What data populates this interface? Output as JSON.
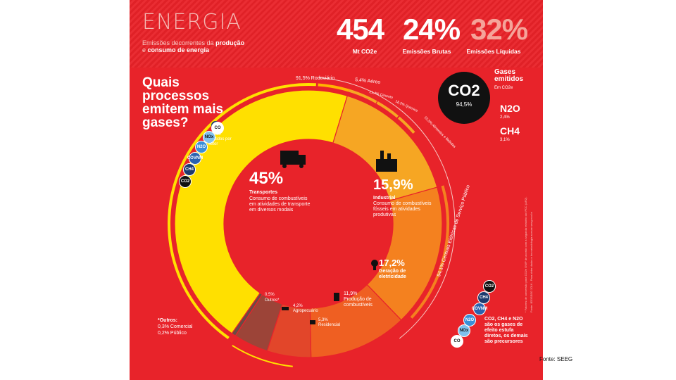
{
  "header": {
    "title": "ENERGIA",
    "subtitle_line1_prefix": "Emissões decorrentes da ",
    "subtitle_line1_highlight": "produção",
    "subtitle_line2_prefix": "e ",
    "subtitle_line2_highlight": "consumo de energia",
    "stats": [
      {
        "value": "454",
        "label": "Mt CO2e"
      },
      {
        "value": "24%",
        "label": "Emissões Brutas"
      },
      {
        "value": "32%",
        "label": "Emissões Líquidas"
      }
    ]
  },
  "question": "Quais processos emitem mais gases?",
  "legend_gases_by_sector": "Gases emitidos por setor",
  "gases_panel": {
    "title": "Gases emitidos",
    "unit": "Em CO2e",
    "co2": {
      "label": "CO2",
      "value": "94,5%"
    },
    "n2o": {
      "label": "N2O",
      "value": "2,4%"
    },
    "ch4": {
      "label": "CH4",
      "value": "3,1%"
    }
  },
  "gas_bubbles_left": [
    "CO",
    "NOx",
    "N2O",
    "COVNM",
    "CH4",
    "CO2"
  ],
  "gas_bubbles_right": [
    "CO2",
    "CH4",
    "COVNM",
    "N2O",
    "NOx",
    "CO"
  ],
  "right_note": "CO2, CH4 e N2O são os gases de efeito estufa diretos, os demais são precursores",
  "outros_note": {
    "title": "*Outros:",
    "line1": "0,3% Comercial",
    "line2": "0,2% Público"
  },
  "source_note_line1": "* Fatores de conversão para CO2e GWP de acordo com a segunda relatório do IPCC (AR2).",
  "source_note_line2": "Fonte: IEE/SEEG 2016 - Para obter dados e ler metodologia acesse seeg.eco.br",
  "fonte": "Fonte: SEEG",
  "chart_data": {
    "type": "pie",
    "style": "donut",
    "title": "",
    "sectors": [
      {
        "name": "Transportes",
        "value": 45.0,
        "label": "45%",
        "desc": "Consumo de combustíveis em atividades de transporte em diversos modais",
        "color": "#ffe000"
      },
      {
        "name": "Industrial",
        "value": 15.9,
        "label": "15,9%",
        "desc": "Consumo de combustíveis fósseis em atividades produtivas",
        "color": "#f6a623"
      },
      {
        "name": "Geração de eletricidade",
        "value": 17.2,
        "label": "17,2%",
        "desc": "",
        "color": "#f4811f"
      },
      {
        "name": "Produção de combustíveis",
        "value": 11.9,
        "label": "11,9%",
        "desc": "",
        "color": "#ef5f22"
      },
      {
        "name": "Residencial",
        "value": 5.3,
        "label": "5,3%",
        "desc": "",
        "color": "#e2462a"
      },
      {
        "name": "Agropecuário",
        "value": 4.2,
        "label": "4,2%",
        "desc": "",
        "color": "#9c4438"
      },
      {
        "name": "Outros*",
        "value": 0.5,
        "label": "0,5%",
        "desc": "",
        "color": "#6b4a44"
      }
    ],
    "outer_labels": [
      {
        "text": "91,5% Rodoviário",
        "sector": "Transportes"
      },
      {
        "text": "5,4% Aéreo",
        "sector": "Transportes"
      },
      {
        "text": "21,4% Cimento",
        "sector": "Industrial"
      },
      {
        "text": "18,3% Química",
        "sector": "Industrial"
      },
      {
        "text": "15,5% Alimentos e Bebidas",
        "sector": "Industrial"
      },
      {
        "text": "94,1% Centrais Elétricas de Serviço Público",
        "sector": "Geração de eletricidade"
      }
    ]
  }
}
